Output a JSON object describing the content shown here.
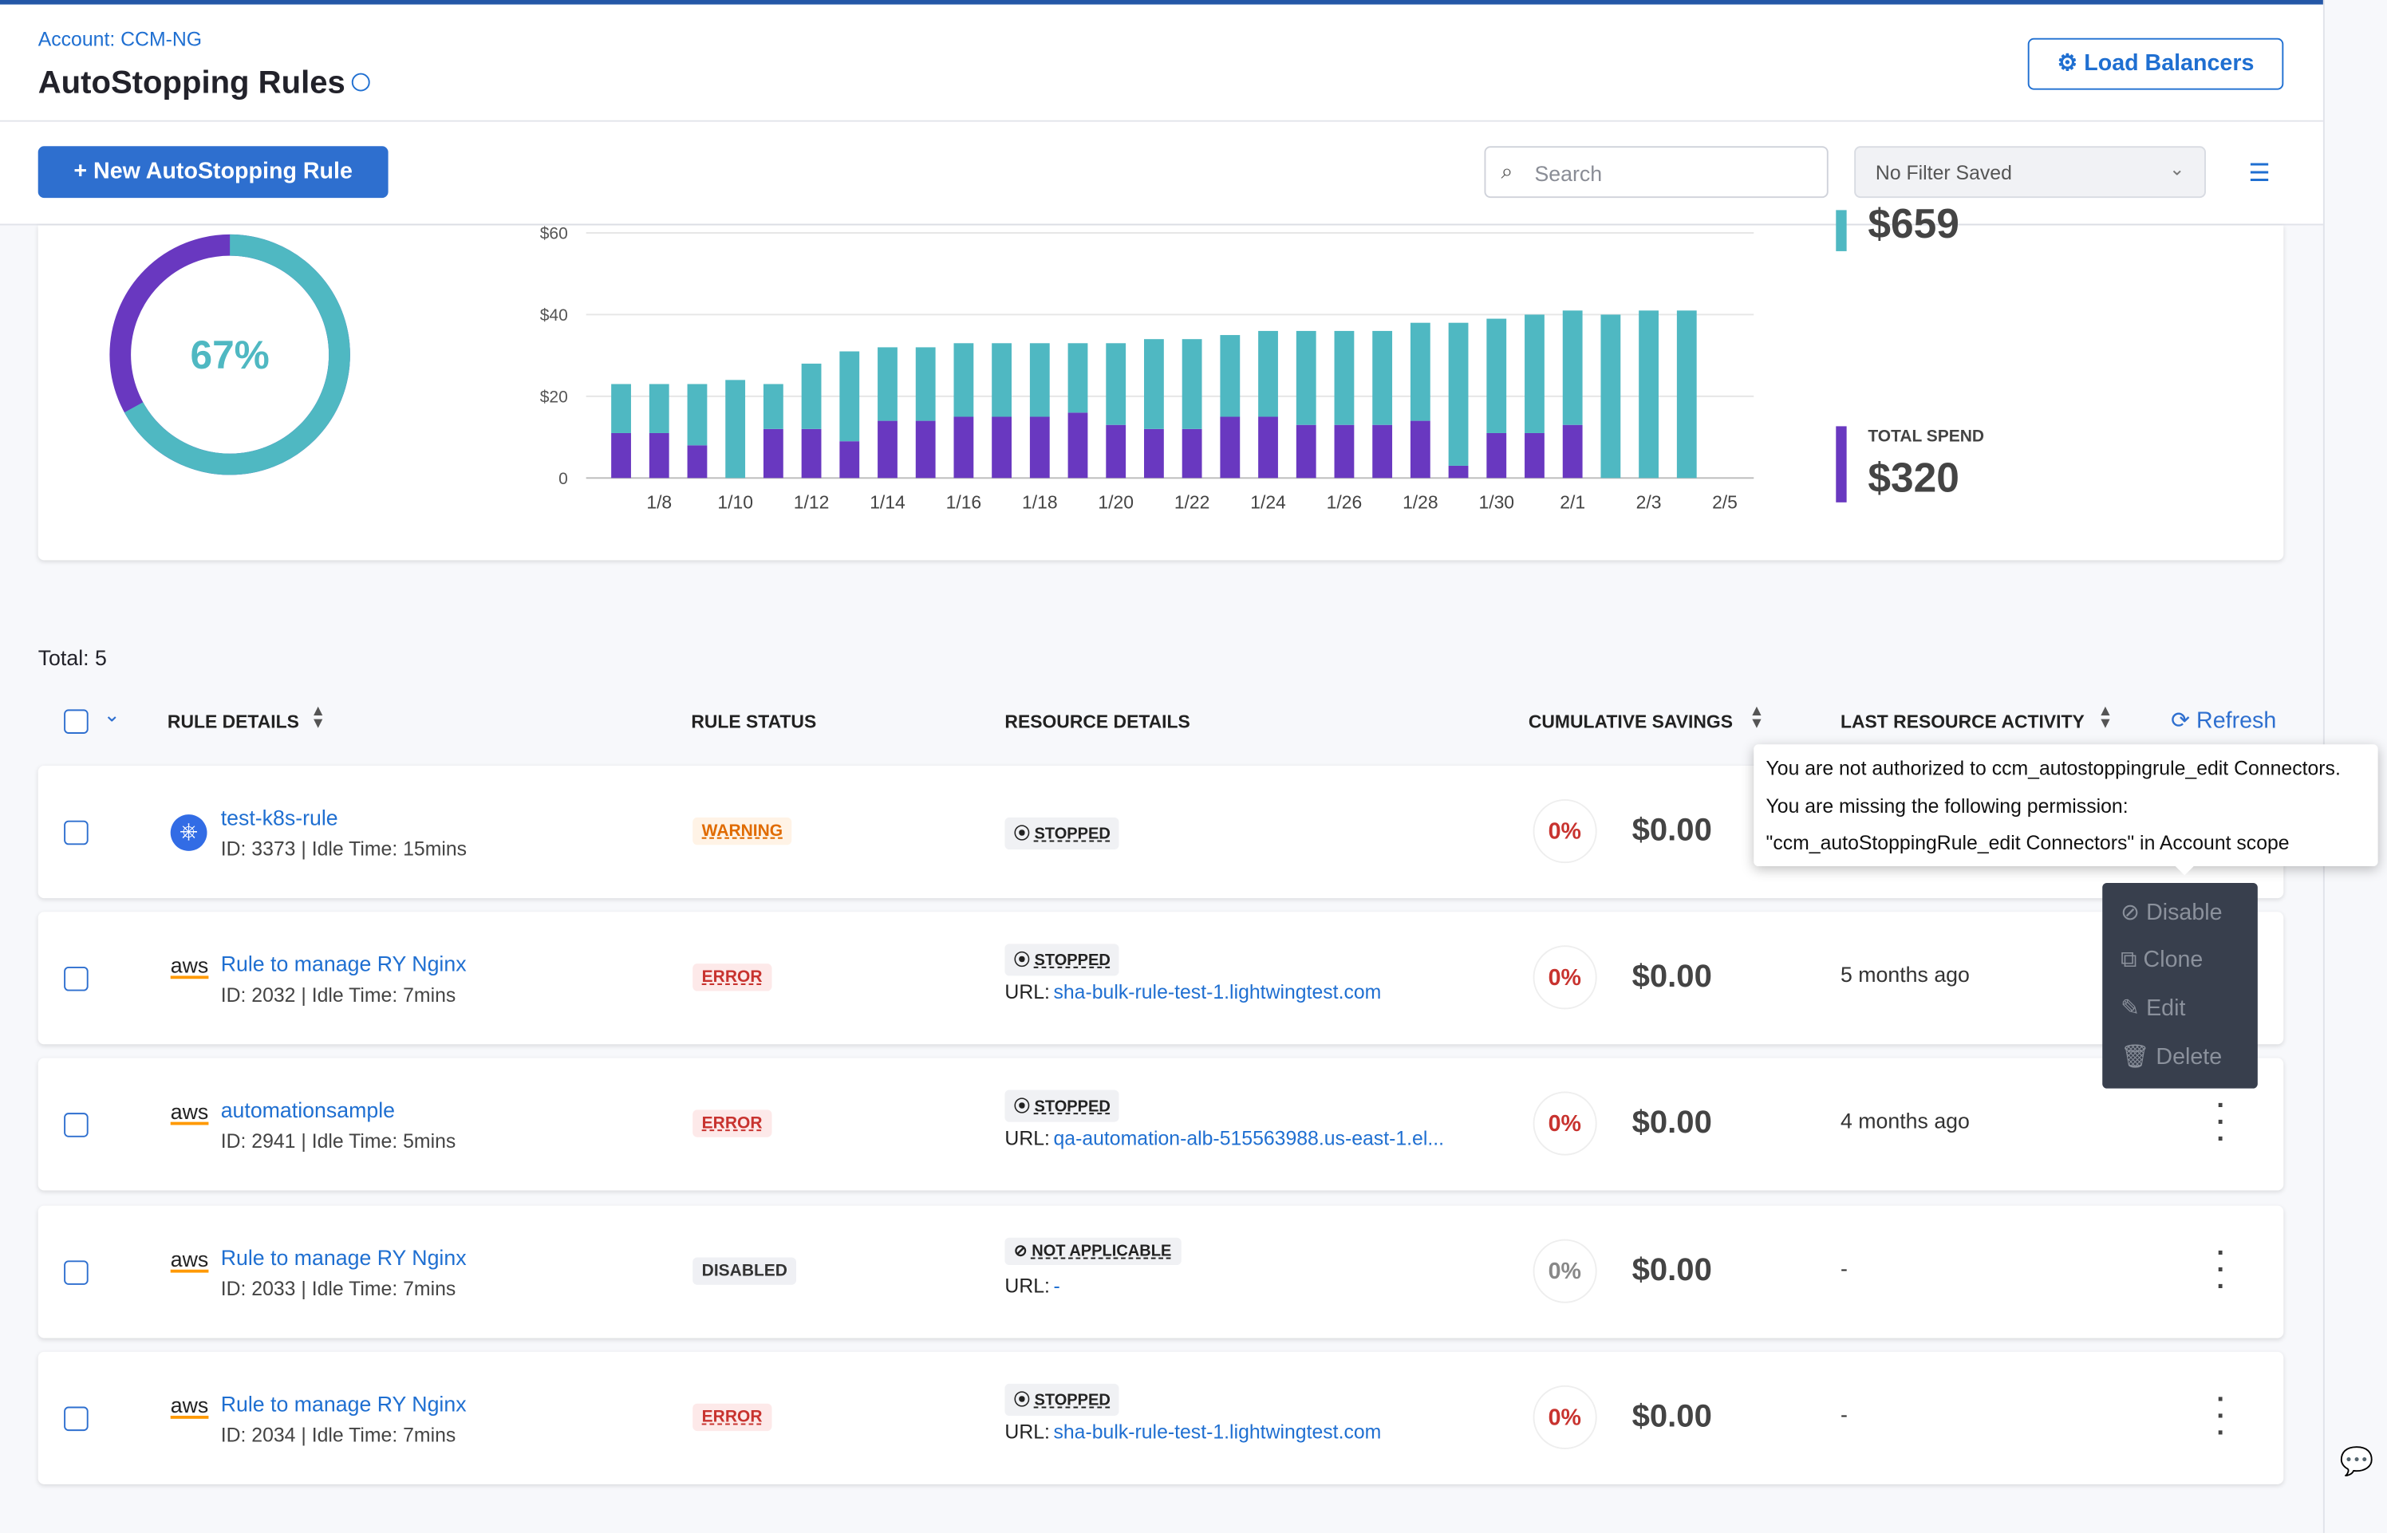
{
  "header": {
    "account": "Account: CCM-NG",
    "title": "AutoStopping Rules",
    "load_balancers": "Load Balancers"
  },
  "toolbar": {
    "new_rule": "New AutoStopping Rule",
    "search": "Search",
    "filter": "No Filter Saved"
  },
  "summary": {
    "donut": {
      "value": 67,
      "label": "67%"
    },
    "top_spend": "$659",
    "total_spend_label": "TOTAL SPEND",
    "total_spend": "$320"
  },
  "chart_data": {
    "type": "bar",
    "stacked": true,
    "grid": true,
    "categories": [
      null,
      "1/8",
      null,
      "1/10",
      null,
      "1/12",
      null,
      "1/14",
      null,
      "1/16",
      null,
      "1/18",
      null,
      "1/20",
      null,
      "1/22",
      null,
      "1/24",
      null,
      "1/26",
      null,
      "1/28",
      null,
      "1/30",
      null,
      "2/1",
      null,
      "2/3",
      null,
      "2/5"
    ],
    "series": [
      {
        "color": "#6938c0",
        "values": [
          11,
          11,
          8,
          0,
          12,
          12,
          9,
          14,
          14,
          15,
          15,
          15,
          16,
          13,
          12,
          12,
          15,
          15,
          13,
          13,
          13,
          14,
          3,
          11,
          11,
          13,
          0,
          0,
          0,
          null
        ]
      },
      {
        "color": "#4fb8c2",
        "values": [
          12,
          12,
          15,
          24,
          11,
          16,
          22,
          18,
          18,
          18,
          18,
          18,
          17,
          20,
          22,
          22,
          20,
          21,
          23,
          23,
          23,
          24,
          35,
          28,
          29,
          28,
          40,
          41,
          41,
          null
        ]
      }
    ],
    "ylim": [
      0,
      60
    ],
    "yticks": [
      0,
      {
        "value": 20,
        "label": "$20"
      },
      {
        "value": 40,
        "label": "$40"
      },
      {
        "value": 60,
        "label": "$60"
      }
    ]
  },
  "table": {
    "total": "Total: 5",
    "columns": [
      "RULE DETAILS",
      "RULE STATUS",
      "RESOURCE DETAILS",
      "CUMULATIVE SAVINGS",
      "LAST RESOURCE ACTIVITY"
    ],
    "refresh": "Refresh",
    "rows": [
      {
        "name": "test-k8s-rule",
        "details": "ID: 3373 | Idle Time: 15mins",
        "status": "WARNING",
        "resource": "STOPPED",
        "savings_percent": "0%",
        "savings": "$0.00"
      },
      {
        "icon": "aws",
        "name": "Rule to manage RY Nginx",
        "details": "ID: 2032 | Idle Time: 7mins",
        "status": "ERROR",
        "resource": "STOPPED",
        "url_label": "URL:",
        "url": "sha-bulk-rule-test-1.lightwingtest.com",
        "savings_percent": "0%",
        "savings": "$0.00",
        "activity": "5 months ago"
      },
      {
        "icon": "aws",
        "name": "automationsample",
        "details": "ID: 2941 | Idle Time: 5mins",
        "status": "ERROR",
        "resource": "STOPPED",
        "url_label": "URL:",
        "url": "qa-automation-alb-515563988.us-east-1.el...",
        "savings_percent": "0%",
        "savings": "$0.00",
        "activity": "4 months ago"
      },
      {
        "icon": "aws",
        "name": "Rule to manage RY Nginx",
        "details": "ID: 2033 | Idle Time: 7mins",
        "status": "DISABLED",
        "resource": "NOT APPLICABLE",
        "url_label": "URL:",
        "url": "-",
        "savings_percent": "0%",
        "savings": "$0.00",
        "activity": "-"
      },
      {
        "icon": "aws",
        "name": "Rule to manage RY Nginx",
        "details": "ID: 2034 | Idle Time: 7mins",
        "status": "ERROR",
        "resource": "STOPPED",
        "url_label": "URL:",
        "url": "sha-bulk-rule-test-1.lightwingtest.com",
        "savings_percent": "0%",
        "savings": "$0.00",
        "activity": "-"
      }
    ]
  },
  "tooltip": {
    "lines": [
      "You are not authorized to ccm_autostoppingrule_edit Connectors.",
      "You are missing the following permission:",
      "\"ccm_autoStoppingRule_edit Connectors\" in Account scope"
    ]
  },
  "menu": {
    "items": [
      "Disable",
      "Clone",
      "Edit",
      "Delete"
    ]
  }
}
